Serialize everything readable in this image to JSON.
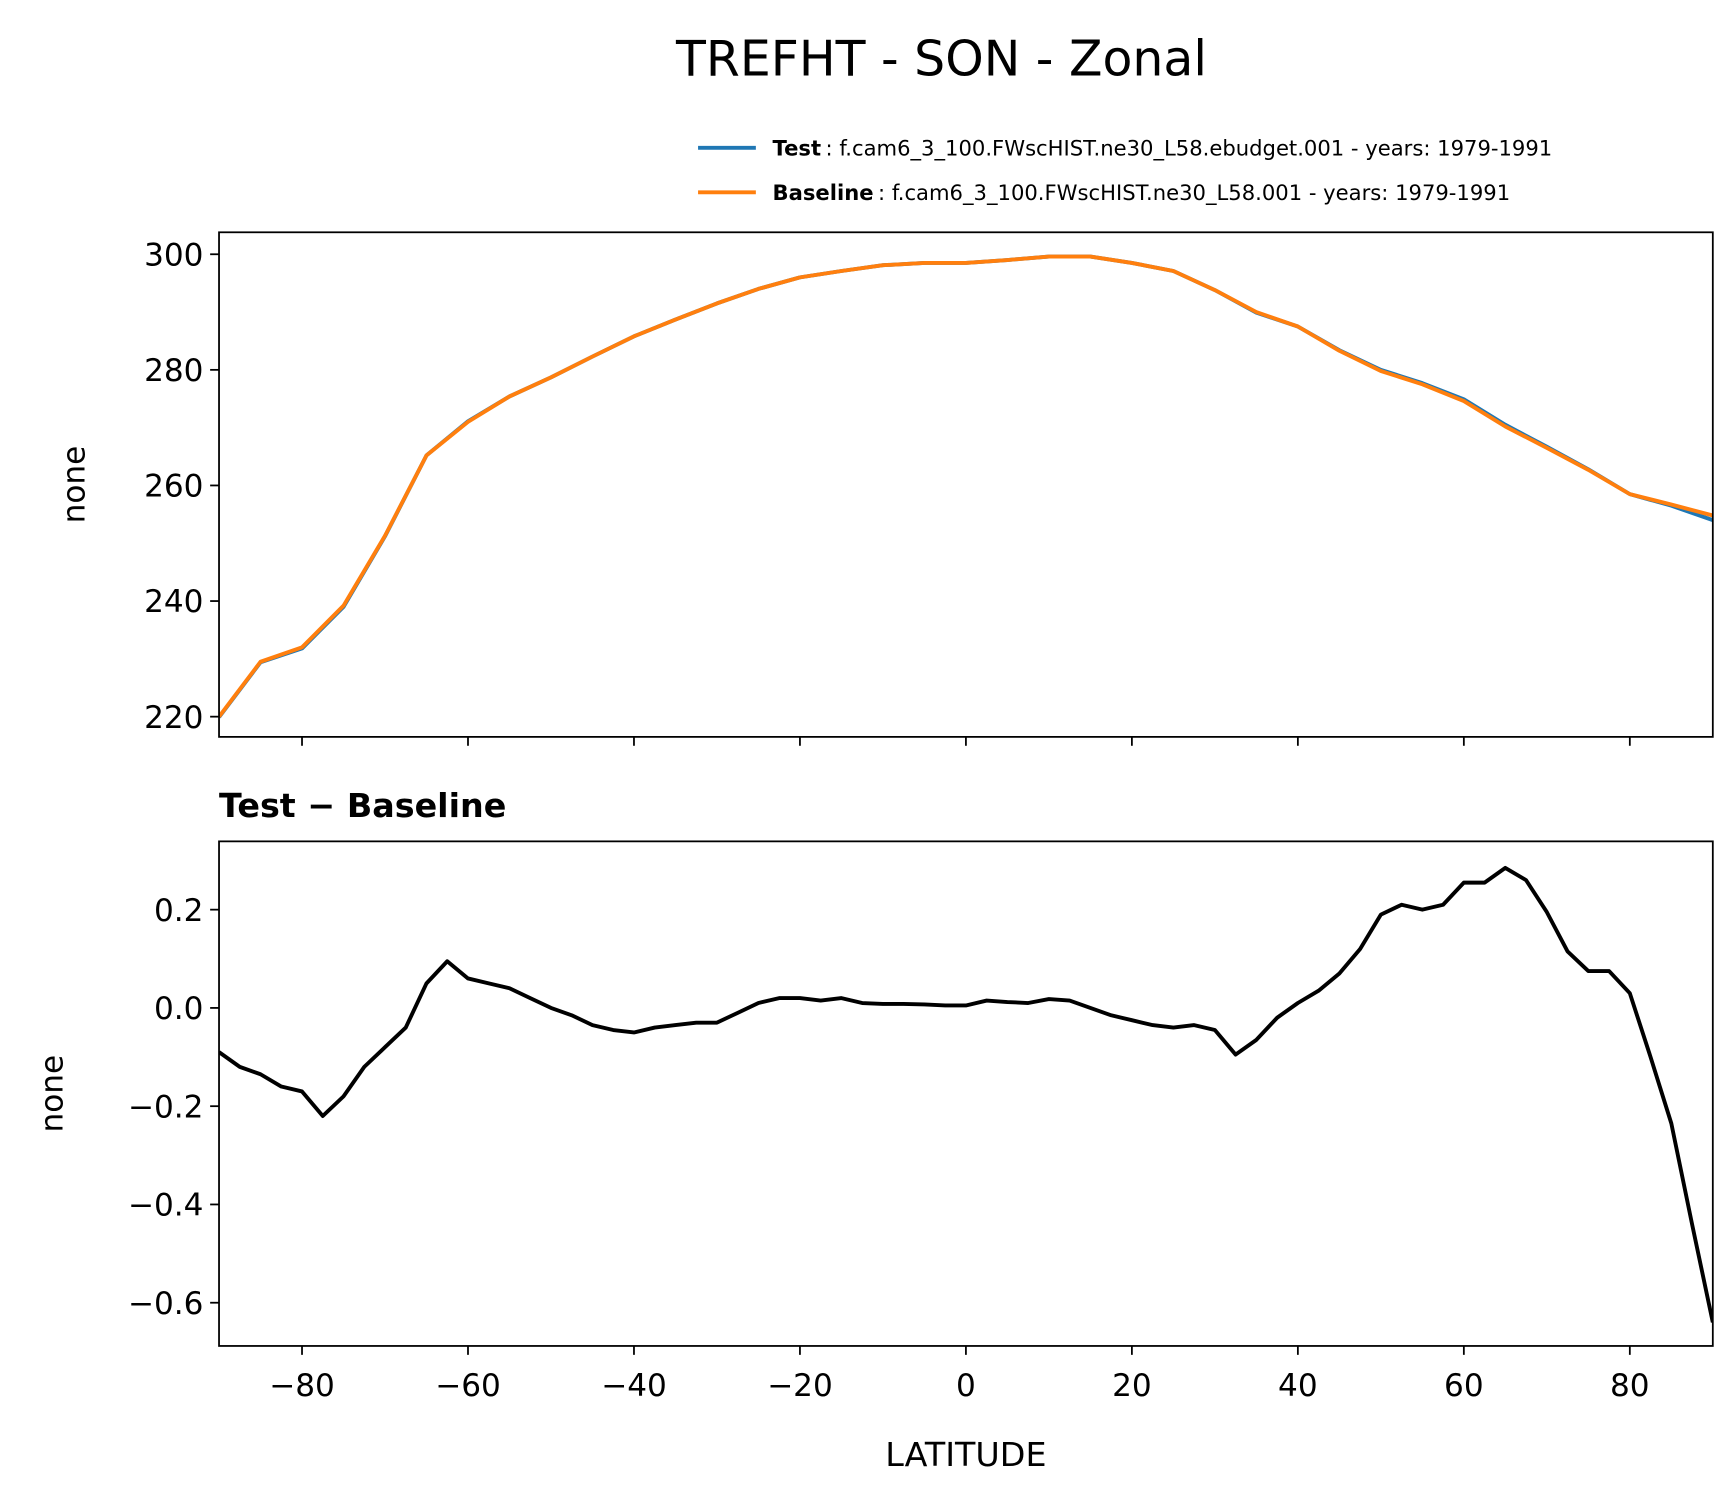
{
  "chart_data": [
    {
      "type": "line",
      "title": "TREFHT - SON - Zonal",
      "ylabel": "none",
      "legend": "upper right",
      "xtick_labels": false,
      "x": [
        -90,
        -85,
        -80,
        -75,
        -70,
        -65,
        -60,
        -55,
        -50,
        -45,
        -40,
        -35,
        -30,
        -25,
        -20,
        -15,
        -10,
        -5,
        0,
        5,
        10,
        15,
        20,
        25,
        30,
        35,
        40,
        45,
        50,
        55,
        60,
        65,
        70,
        75,
        80,
        85,
        90
      ],
      "xlim": [
        -90,
        90
      ],
      "xticks": [
        -80,
        -60,
        -40,
        -20,
        0,
        20,
        40,
        60,
        80
      ],
      "ylim": [
        216.5,
        303.8
      ],
      "yticks": [
        220,
        240,
        260,
        280,
        300
      ],
      "series": [
        {
          "name": "Test",
          "description": ": f.cam6_3_100.FWscHIST.ne30_L58.ebudget.001 - years: 1979-1991",
          "color": "#1f77b4",
          "values": [
            219.9,
            229.4,
            231.8,
            239,
            251.2,
            265.2,
            271.1,
            275.4,
            278.7,
            282.3,
            285.8,
            288.7,
            291.5,
            294,
            296,
            297.1,
            298.1,
            298.5,
            298.5,
            299,
            299.6,
            299.6,
            298.5,
            297.1,
            293.8,
            289.9,
            287.5,
            283.4,
            280,
            277.7,
            274.9,
            270.5,
            266.7,
            262.8,
            258.5,
            256.5,
            254
          ]
        },
        {
          "name": "Baseline",
          "description": ": f.cam6_3_100.FWscHIST.ne30_L58.001 - years: 1979-1991",
          "color": "#ff7f0e",
          "values": [
            220,
            229.5,
            232,
            239.2,
            251.3,
            265.2,
            271,
            275.4,
            278.7,
            282.3,
            285.8,
            288.7,
            291.5,
            294,
            296,
            297.1,
            298.1,
            298.5,
            298.5,
            299,
            299.6,
            299.6,
            298.5,
            297.1,
            293.8,
            290,
            287.5,
            283.3,
            279.8,
            277.5,
            274.6,
            270.2,
            266.5,
            262.7,
            258.5,
            256.7,
            254.8
          ]
        }
      ]
    },
    {
      "type": "line",
      "title": "Test − Baseline",
      "ylabel": "none",
      "xlabel": "LATITUDE",
      "x": [
        -90,
        -87.5,
        -85,
        -82.5,
        -80,
        -77.5,
        -75,
        -72.5,
        -70,
        -67.5,
        -65,
        -62.5,
        -60,
        -57.5,
        -55,
        -52.5,
        -50,
        -47.5,
        -45,
        -42.5,
        -40,
        -37.5,
        -35,
        -32.5,
        -30,
        -27.5,
        -25,
        -22.5,
        -20,
        -17.5,
        -15,
        -12.5,
        -10,
        -7.5,
        -5,
        -2.5,
        0,
        2.5,
        5,
        7.5,
        10,
        12.5,
        15,
        17.5,
        20,
        22.5,
        25,
        27.5,
        30,
        32.5,
        35,
        37.5,
        40,
        42.5,
        45,
        47.5,
        50,
        52.5,
        55,
        57.5,
        60,
        62.5,
        65,
        67.5,
        70,
        72.5,
        75,
        77.5,
        80,
        82.5,
        85,
        87.5,
        90
      ],
      "xlim": [
        -90,
        90
      ],
      "xticks": [
        {
          "value": -80,
          "label": "−80"
        },
        {
          "value": -60,
          "label": "−60"
        },
        {
          "value": -40,
          "label": "−40"
        },
        {
          "value": -20,
          "label": "−20"
        },
        0,
        20,
        40,
        60,
        80
      ],
      "ylim": [
        -0.688,
        0.339
      ],
      "yticks": [
        {
          "value": -0.6,
          "label": "−0.6"
        },
        {
          "value": -0.4,
          "label": "−0.4"
        },
        {
          "value": -0.2,
          "label": "−0.2"
        },
        {
          "value": 0,
          "label": "0.0"
        },
        0.2
      ],
      "series": [
        {
          "color": "#000000",
          "values": [
            -0.09,
            -0.12,
            -0.135,
            -0.16,
            -0.17,
            -0.22,
            -0.18,
            -0.12,
            -0.08,
            -0.04,
            0.05,
            0.095,
            0.06,
            0.05,
            0.04,
            0.02,
            0,
            -0.015,
            -0.035,
            -0.045,
            -0.05,
            -0.04,
            -0.035,
            -0.03,
            -0.03,
            -0.01,
            0.01,
            0.02,
            0.02,
            0.015,
            0.02,
            0.01,
            0.008,
            0.008,
            0.007,
            0.005,
            0.005,
            0.015,
            0.012,
            0.01,
            0.018,
            0.015,
            0,
            -0.015,
            -0.025,
            -0.035,
            -0.04,
            -0.035,
            -0.045,
            -0.095,
            -0.065,
            -0.02,
            0.01,
            0.035,
            0.07,
            0.12,
            0.19,
            0.21,
            0.2,
            0.21,
            0.255,
            0.255,
            0.285,
            0.26,
            0.195,
            0.115,
            0.075,
            0.075,
            0.03,
            -0.1,
            -0.235,
            -0.44,
            -0.64
          ]
        }
      ]
    }
  ]
}
